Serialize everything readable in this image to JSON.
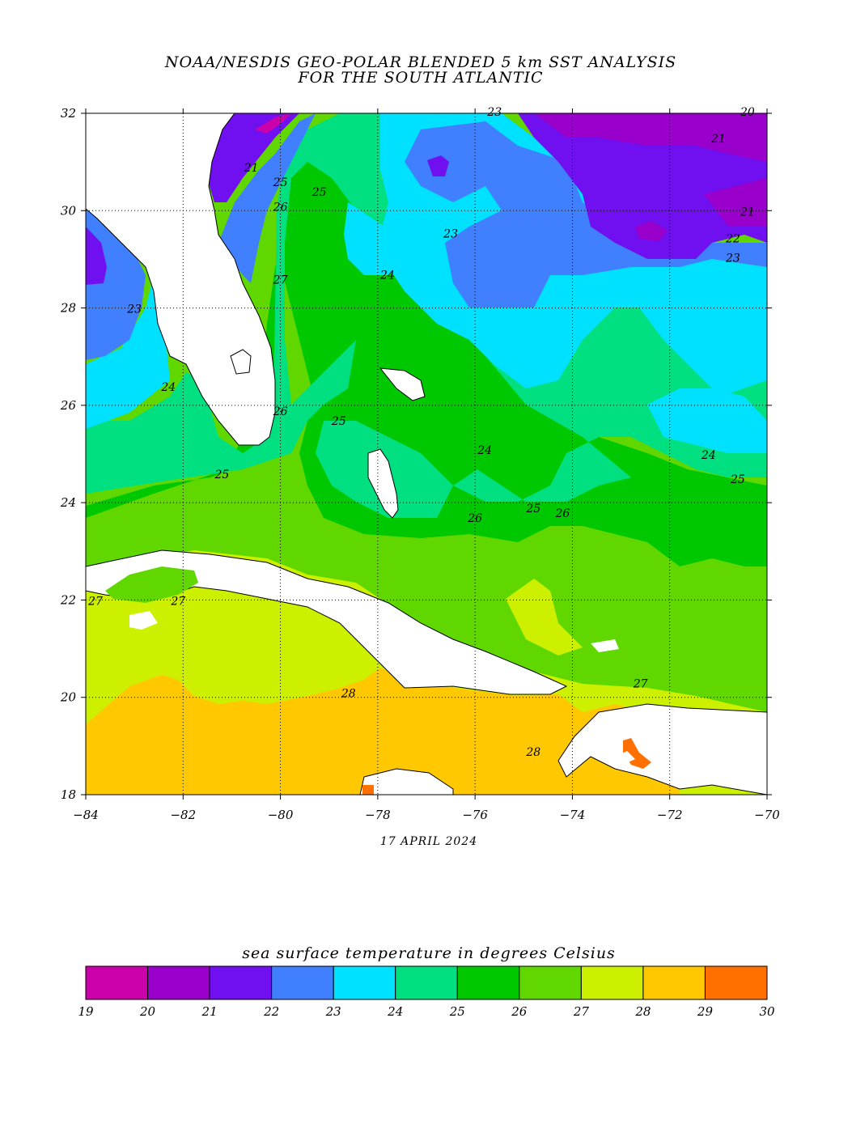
{
  "header": {
    "title_line1": "NOAA/NESDIS GEO-POLAR BLENDED 5 km SST ANALYSIS",
    "title_line2": "FOR THE SOUTH ATLANTIC"
  },
  "map": {
    "lon_range": [
      -84,
      -70
    ],
    "lat_range": [
      18,
      32
    ],
    "x_ticks": [
      -84,
      -82,
      -80,
      -78,
      -76,
      -74,
      -72,
      -70
    ],
    "y_ticks": [
      18,
      20,
      22,
      24,
      26,
      28,
      30,
      32
    ],
    "x_tick_labels": [
      "−84",
      "−82",
      "−80",
      "−78",
      "−76",
      "−74",
      "−72",
      "−70"
    ],
    "y_tick_labels": [
      "18",
      "20",
      "22",
      "24",
      "26",
      "28",
      "30",
      "32"
    ],
    "grid": "dotted",
    "date": "17 APRIL 2024",
    "contour_labels": [
      {
        "text": "23",
        "lon": -75.6,
        "lat": 31.95
      },
      {
        "text": "20",
        "lon": -70.4,
        "lat": 31.95
      },
      {
        "text": "21",
        "lon": -71.0,
        "lat": 31.4
      },
      {
        "text": "21",
        "lon": -80.6,
        "lat": 30.8
      },
      {
        "text": "25",
        "lon": -80.0,
        "lat": 30.5
      },
      {
        "text": "25",
        "lon": -79.2,
        "lat": 30.3
      },
      {
        "text": "26",
        "lon": -80.0,
        "lat": 30.0
      },
      {
        "text": "21",
        "lon": -70.4,
        "lat": 29.9
      },
      {
        "text": "23",
        "lon": -76.5,
        "lat": 29.45
      },
      {
        "text": "22",
        "lon": -70.7,
        "lat": 29.35
      },
      {
        "text": "23",
        "lon": -70.7,
        "lat": 28.95
      },
      {
        "text": "24",
        "lon": -77.8,
        "lat": 28.6
      },
      {
        "text": "27",
        "lon": -80.0,
        "lat": 28.5
      },
      {
        "text": "23",
        "lon": -83.0,
        "lat": 27.9
      },
      {
        "text": "24",
        "lon": -82.3,
        "lat": 26.3
      },
      {
        "text": "26",
        "lon": -80.0,
        "lat": 25.8
      },
      {
        "text": "25",
        "lon": -78.8,
        "lat": 25.6
      },
      {
        "text": "24",
        "lon": -75.8,
        "lat": 25.0
      },
      {
        "text": "24",
        "lon": -71.2,
        "lat": 24.9
      },
      {
        "text": "25",
        "lon": -81.2,
        "lat": 24.5
      },
      {
        "text": "25",
        "lon": -70.6,
        "lat": 24.4
      },
      {
        "text": "25",
        "lon": -74.8,
        "lat": 23.8
      },
      {
        "text": "26",
        "lon": -76.0,
        "lat": 23.6
      },
      {
        "text": "26",
        "lon": -74.2,
        "lat": 23.7
      },
      {
        "text": "27",
        "lon": -83.8,
        "lat": 21.9
      },
      {
        "text": "27",
        "lon": -82.1,
        "lat": 21.9
      },
      {
        "text": "27",
        "lon": -72.6,
        "lat": 20.2
      },
      {
        "text": "28",
        "lon": -78.6,
        "lat": 20.0
      },
      {
        "text": "28",
        "lon": -74.8,
        "lat": 18.8
      }
    ]
  },
  "legend": {
    "title": "sea surface temperature in degrees Celsius",
    "tick_labels": [
      "19",
      "20",
      "21",
      "22",
      "23",
      "24",
      "25",
      "26",
      "27",
      "28",
      "29",
      "30"
    ],
    "colors": [
      "#cc00aa",
      "#9900cc",
      "#7010f0",
      "#4080ff",
      "#00e0ff",
      "#00e080",
      "#00c800",
      "#60d800",
      "#ccf000",
      "#ffc800",
      "#ff7000"
    ]
  }
}
